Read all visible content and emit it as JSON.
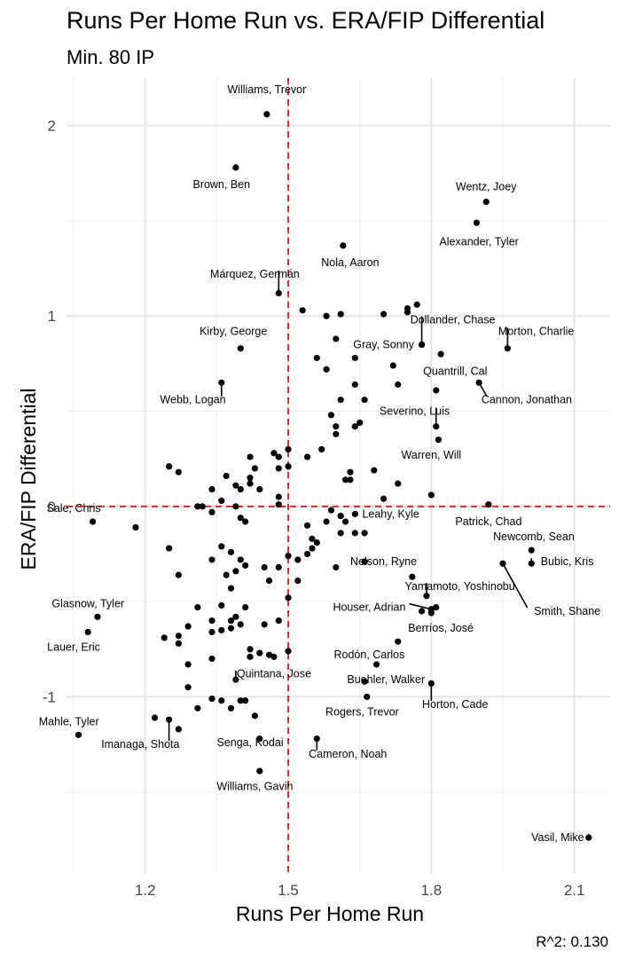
{
  "chart_data": {
    "type": "scatter",
    "title": "Runs Per Home Run vs. ERA/FIP Differential",
    "subtitle": "Min. 80 IP",
    "caption": "R^2: 0.130",
    "xlabel": "Runs Per Home Run",
    "ylabel": "ERA/FIP Differential",
    "xlim": [
      1.035,
      2.175
    ],
    "ylim": [
      -1.93,
      2.25
    ],
    "xticks": [
      {
        "v": 1.2,
        "label": "1.2"
      },
      {
        "v": 1.5,
        "label": "1.5"
      },
      {
        "v": 1.8,
        "label": "1.8"
      },
      {
        "v": 2.1,
        "label": "2.1"
      }
    ],
    "yticks": [
      {
        "v": -1,
        "label": "-1"
      },
      {
        "v": 0,
        "label": "0"
      },
      {
        "v": 1,
        "label": "1"
      },
      {
        "v": 2,
        "label": "2"
      }
    ],
    "ref_lines": {
      "x": 1.5,
      "y": 0
    },
    "labeled_points": [
      {
        "name": "Williams, Trevor",
        "x": 1.455,
        "y": 2.06,
        "lx": 1.455,
        "ly": 2.19
      },
      {
        "name": "Brown, Ben",
        "x": 1.39,
        "y": 1.78,
        "lx": 1.36,
        "ly": 1.69
      },
      {
        "name": "Wentz, Joey",
        "x": 1.915,
        "y": 1.6,
        "lx": 1.915,
        "ly": 1.68
      },
      {
        "name": "Alexander, Tyler",
        "x": 1.895,
        "y": 1.49,
        "lx": 1.9,
        "ly": 1.39
      },
      {
        "name": "Nola, Aaron",
        "x": 1.615,
        "y": 1.37,
        "lx": 1.63,
        "ly": 1.28
      },
      {
        "name": "Márquez, Germán",
        "x": 1.48,
        "y": 1.12,
        "lx": 1.43,
        "ly": 1.22
      },
      {
        "name": "Dollander, Chase",
        "x": 1.78,
        "y": 0.85,
        "lx": 1.845,
        "ly": 0.98
      },
      {
        "name": "Kirby, George",
        "x": 1.4,
        "y": 0.83,
        "lx": 1.385,
        "ly": 0.92
      },
      {
        "name": "Gray, Sonny",
        "x": 1.78,
        "y": 0.85,
        "lx": 1.7,
        "ly": 0.85
      },
      {
        "name": "Morton, Charlie",
        "x": 1.96,
        "y": 0.83,
        "lx": 2.02,
        "ly": 0.92
      },
      {
        "name": "Quantrill, Cal",
        "x": 1.82,
        "y": 0.8,
        "lx": 1.85,
        "ly": 0.71
      },
      {
        "name": "Webb, Logan",
        "x": 1.36,
        "y": 0.65,
        "lx": 1.3,
        "ly": 0.56
      },
      {
        "name": "Cannon, Jonathan",
        "x": 1.9,
        "y": 0.65,
        "lx": 2.0,
        "ly": 0.56
      },
      {
        "name": "Severino, Luis",
        "x": 1.81,
        "y": 0.42,
        "lx": 1.765,
        "ly": 0.5
      },
      {
        "name": "Warren, Will",
        "x": 1.815,
        "y": 0.35,
        "lx": 1.8,
        "ly": 0.27
      },
      {
        "name": "Sale, Chris",
        "x": 1.09,
        "y": -0.08,
        "lx": 1.05,
        "ly": -0.01
      },
      {
        "name": "Leahy, Kyle",
        "x": 1.7,
        "y": 0.04,
        "lx": 1.715,
        "ly": -0.04
      },
      {
        "name": "Patrick, Chad",
        "x": 1.92,
        "y": 0.01,
        "lx": 1.92,
        "ly": -0.08
      },
      {
        "name": "Newcomb, Sean",
        "x": 2.01,
        "y": -0.23,
        "lx": 2.015,
        "ly": -0.16
      },
      {
        "name": "Bubic, Kris",
        "x": 2.01,
        "y": -0.3,
        "lx": 2.085,
        "ly": -0.29
      },
      {
        "name": "Nelson, Ryne",
        "x": 1.66,
        "y": -0.29,
        "lx": 1.7,
        "ly": -0.29
      },
      {
        "name": "Yamamoto, Yoshinobu",
        "x": 1.79,
        "y": -0.47,
        "lx": 1.86,
        "ly": -0.42
      },
      {
        "name": "Smith, Shane",
        "x": 1.95,
        "y": -0.3,
        "lx": 2.085,
        "ly": -0.55
      },
      {
        "name": "Glasnow, Tyler",
        "x": 1.1,
        "y": -0.58,
        "lx": 1.08,
        "ly": -0.51
      },
      {
        "name": "Houser, Adrian",
        "x": 1.8,
        "y": -0.54,
        "lx": 1.67,
        "ly": -0.53
      },
      {
        "name": "Berríos, José",
        "x": 1.81,
        "y": -0.53,
        "lx": 1.82,
        "ly": -0.64
      },
      {
        "name": "Lauer, Eric",
        "x": 1.08,
        "y": -0.66,
        "lx": 1.05,
        "ly": -0.74
      },
      {
        "name": "Rodón, Carlos",
        "x": 1.685,
        "y": -0.83,
        "lx": 1.67,
        "ly": -0.78
      },
      {
        "name": "Quintana, Jose",
        "x": 1.39,
        "y": -0.91,
        "lx": 1.47,
        "ly": -0.88
      },
      {
        "name": "Buehler, Walker",
        "x": 1.66,
        "y": -0.92,
        "lx": 1.705,
        "ly": -0.91
      },
      {
        "name": "Horton, Cade",
        "x": 1.8,
        "y": -0.93,
        "lx": 1.85,
        "ly": -1.04
      },
      {
        "name": "Rogers, Trevor",
        "x": 1.665,
        "y": -1.0,
        "lx": 1.655,
        "ly": -1.08
      },
      {
        "name": "Mahle, Tyler",
        "x": 1.06,
        "y": -1.2,
        "lx": 1.04,
        "ly": -1.13
      },
      {
        "name": "Imanaga, Shota",
        "x": 1.25,
        "y": -1.12,
        "lx": 1.19,
        "ly": -1.25
      },
      {
        "name": "Senga, Kodai",
        "x": 1.44,
        "y": -1.22,
        "lx": 1.42,
        "ly": -1.24
      },
      {
        "name": "Cameron, Noah",
        "x": 1.56,
        "y": -1.22,
        "lx": 1.625,
        "ly": -1.3
      },
      {
        "name": "Williams, Gavin",
        "x": 1.44,
        "y": -1.39,
        "lx": 1.43,
        "ly": -1.47
      },
      {
        "name": "Vasil, Mike",
        "x": 2.13,
        "y": -1.74,
        "lx": 2.065,
        "ly": -1.74
      }
    ],
    "points": [
      [
        1.48,
        0.26
      ],
      [
        1.5,
        0.3
      ],
      [
        1.5,
        0.21
      ],
      [
        1.48,
        0.2
      ],
      [
        1.47,
        0.28
      ],
      [
        1.43,
        0.2
      ],
      [
        1.44,
        0.09
      ],
      [
        1.42,
        0.15
      ],
      [
        1.4,
        0.09
      ],
      [
        1.42,
        0.26
      ],
      [
        1.42,
        0.12
      ],
      [
        1.39,
        0.11
      ],
      [
        1.37,
        0.16
      ],
      [
        1.36,
        0.03
      ],
      [
        1.34,
        0.09
      ],
      [
        1.32,
        0.0
      ],
      [
        1.31,
        0.0
      ],
      [
        1.27,
        0.18
      ],
      [
        1.25,
        0.21
      ],
      [
        1.34,
        -0.03
      ],
      [
        1.39,
        0.0
      ],
      [
        1.48,
        0.05
      ],
      [
        1.48,
        0.01
      ],
      [
        1.4,
        -0.06
      ],
      [
        1.41,
        -0.08
      ],
      [
        1.54,
        0.26
      ],
      [
        1.57,
        0.3
      ],
      [
        1.6,
        0.38
      ],
      [
        1.62,
        0.14
      ],
      [
        1.63,
        0.14
      ],
      [
        1.63,
        0.18
      ],
      [
        1.68,
        0.19
      ],
      [
        1.73,
        0.12
      ],
      [
        1.8,
        0.06
      ],
      [
        1.53,
        1.03
      ],
      [
        1.58,
        1.0
      ],
      [
        1.61,
        1.01
      ],
      [
        1.7,
        1.01
      ],
      [
        1.75,
        1.02
      ],
      [
        1.75,
        1.04
      ],
      [
        1.77,
        1.06
      ],
      [
        1.6,
        0.88
      ],
      [
        1.56,
        0.78
      ],
      [
        1.58,
        0.72
      ],
      [
        1.64,
        0.78
      ],
      [
        1.66,
        0.56
      ],
      [
        1.72,
        0.74
      ],
      [
        1.73,
        0.64
      ],
      [
        1.81,
        0.61
      ],
      [
        1.61,
        0.56
      ],
      [
        1.64,
        0.64
      ],
      [
        1.59,
        0.48
      ],
      [
        1.6,
        0.42
      ],
      [
        1.64,
        0.42
      ],
      [
        1.65,
        0.44
      ],
      [
        1.18,
        -0.11
      ],
      [
        1.25,
        -0.22
      ],
      [
        1.27,
        -0.36
      ],
      [
        1.34,
        -0.28
      ],
      [
        1.36,
        -0.21
      ],
      [
        1.38,
        -0.24
      ],
      [
        1.39,
        -0.34
      ],
      [
        1.37,
        -0.36
      ],
      [
        1.4,
        -0.28
      ],
      [
        1.41,
        -0.31
      ],
      [
        1.45,
        -0.32
      ],
      [
        1.46,
        -0.39
      ],
      [
        1.48,
        -0.32
      ],
      [
        1.5,
        -0.26
      ],
      [
        1.52,
        -0.28
      ],
      [
        1.52,
        -0.39
      ],
      [
        1.55,
        -0.17
      ],
      [
        1.55,
        -0.22
      ],
      [
        1.54,
        -0.25
      ],
      [
        1.56,
        -0.19
      ],
      [
        1.54,
        -0.1
      ],
      [
        1.58,
        -0.08
      ],
      [
        1.59,
        -0.02
      ],
      [
        1.61,
        -0.14
      ],
      [
        1.61,
        -0.05
      ],
      [
        1.62,
        -0.08
      ],
      [
        1.64,
        -0.14
      ],
      [
        1.66,
        -0.14
      ],
      [
        1.64,
        -0.04
      ],
      [
        1.6,
        -0.32
      ],
      [
        1.66,
        -0.29
      ],
      [
        1.76,
        -0.37
      ],
      [
        1.38,
        -0.43
      ],
      [
        1.5,
        -0.48
      ],
      [
        1.31,
        -0.53
      ],
      [
        1.34,
        -0.6
      ],
      [
        1.36,
        -0.52
      ],
      [
        1.38,
        -0.6
      ],
      [
        1.39,
        -0.58
      ],
      [
        1.4,
        -0.62
      ],
      [
        1.41,
        -0.53
      ],
      [
        1.38,
        -0.64
      ],
      [
        1.34,
        -0.66
      ],
      [
        1.36,
        -0.65
      ],
      [
        1.42,
        -0.75
      ],
      [
        1.42,
        -0.79
      ],
      [
        1.44,
        -0.77
      ],
      [
        1.46,
        -0.78
      ],
      [
        1.47,
        -0.79
      ],
      [
        1.48,
        -0.6
      ],
      [
        1.5,
        -0.76
      ],
      [
        1.45,
        -0.62
      ],
      [
        1.27,
        -0.72
      ],
      [
        1.27,
        -0.68
      ],
      [
        1.29,
        -0.63
      ],
      [
        1.24,
        -0.69
      ],
      [
        1.29,
        -0.83
      ],
      [
        1.34,
        -0.8
      ],
      [
        1.29,
        -0.95
      ],
      [
        1.31,
        -1.06
      ],
      [
        1.34,
        -1.01
      ],
      [
        1.36,
        -1.02
      ],
      [
        1.38,
        -1.06
      ],
      [
        1.4,
        -1.02
      ],
      [
        1.41,
        -1.02
      ],
      [
        1.43,
        -1.1
      ],
      [
        1.22,
        -1.11
      ],
      [
        1.27,
        -1.17
      ],
      [
        1.73,
        -0.71
      ],
      [
        1.78,
        -0.55
      ],
      [
        1.8,
        -0.56
      ]
    ]
  }
}
